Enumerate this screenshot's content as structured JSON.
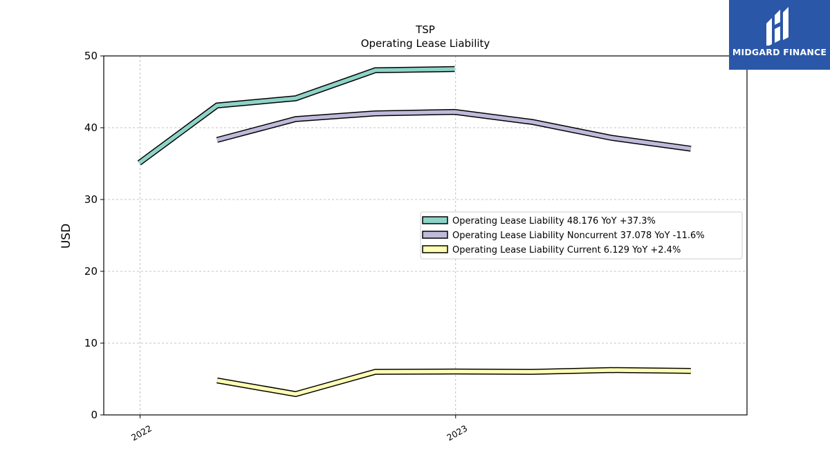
{
  "brand": {
    "name": "MIDGARD FINANCE",
    "background": "#2b57a8",
    "icon": "midgard-logo-icon"
  },
  "chart_data": {
    "type": "line",
    "title": "TSP",
    "subtitle": "Operating Lease Liability",
    "xlabel": "",
    "ylabel": "USD",
    "ylim": [
      0,
      50
    ],
    "yticks": [
      0,
      10,
      20,
      30,
      40,
      50
    ],
    "xticks": [
      {
        "label": "2022",
        "x": "2022-01-01"
      },
      {
        "label": "2023",
        "x": "2023-01-01"
      }
    ],
    "xlim": [
      "2021-11-20",
      "2023-12-04"
    ],
    "grid": true,
    "legend_position": "center-right",
    "series": [
      {
        "name": "Operating Lease Liability",
        "legend_label": "Operating Lease Liability  48.176 YoY +37.3%",
        "color": "#8dd3c7",
        "points": [
          {
            "x": "2021-12-31",
            "y": 35.1
          },
          {
            "x": "2022-03-31",
            "y": 43.1
          },
          {
            "x": "2022-06-30",
            "y": 44.1
          },
          {
            "x": "2022-09-30",
            "y": 48.0
          },
          {
            "x": "2022-12-31",
            "y": 48.176
          }
        ]
      },
      {
        "name": "Operating Lease Liability Noncurrent",
        "legend_label": "Operating Lease Liability Noncurrent  37.078 YoY -11.6%",
        "color": "#bebada",
        "points": [
          {
            "x": "2022-03-31",
            "y": 38.3
          },
          {
            "x": "2022-06-30",
            "y": 41.2
          },
          {
            "x": "2022-09-30",
            "y": 42.0
          },
          {
            "x": "2022-12-31",
            "y": 42.2
          },
          {
            "x": "2023-03-31",
            "y": 40.8
          },
          {
            "x": "2023-06-30",
            "y": 38.6
          },
          {
            "x": "2023-09-30",
            "y": 37.078
          }
        ]
      },
      {
        "name": "Operating Lease Liability Current",
        "legend_label": "Operating Lease Liability Current  6.129 YoY +2.4%",
        "color": "#ffffb3",
        "points": [
          {
            "x": "2022-03-31",
            "y": 4.8
          },
          {
            "x": "2022-06-30",
            "y": 2.9
          },
          {
            "x": "2022-09-30",
            "y": 6.0
          },
          {
            "x": "2022-12-31",
            "y": 6.05
          },
          {
            "x": "2023-03-31",
            "y": 6.0
          },
          {
            "x": "2023-06-30",
            "y": 6.25
          },
          {
            "x": "2023-09-30",
            "y": 6.129
          }
        ]
      }
    ]
  }
}
